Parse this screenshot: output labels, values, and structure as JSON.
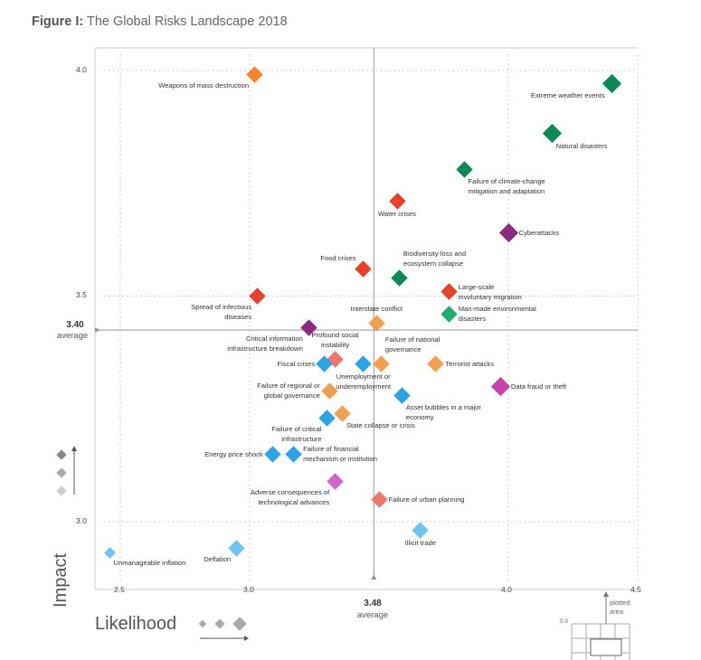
{
  "title": {
    "prefix": "Figure I:",
    "text": " The Global Risks Landscape 2018"
  },
  "chart_data": {
    "type": "scatter",
    "title": "Figure I: The Global Risks Landscape 2018",
    "xlabel": "Likelihood",
    "ylabel": "Impact",
    "xlim": [
      2.5,
      4.5
    ],
    "ylim": [
      3.0,
      4.0
    ],
    "x_ticks": [
      "2.5",
      "3.0",
      "4.0",
      "4.5"
    ],
    "y_ticks": [
      "4.0",
      "3.5",
      "3.0"
    ],
    "grid": true,
    "average": {
      "x": 3.48,
      "x_label": "3.48",
      "y": 3.4,
      "y_label": "3.40",
      "word": "average"
    },
    "inset": {
      "label": "plotted area",
      "tick": "5.0"
    },
    "colors": {
      "economic": "#2ba3e6",
      "economic_light": "#6fc4f1",
      "environmental": "#0b8a55",
      "environmental_light": "#1fae6d",
      "geopolitical": "#f0a050",
      "geopolitical_dark": "#f5872a",
      "societal": "#e8412b",
      "societal_light": "#f0756a",
      "technological": "#8b2a7f",
      "technological_light": "#c544ad",
      "technological_pink": "#d662cc"
    },
    "points": [
      {
        "name": "Weapons of mass destruction",
        "x": 3.02,
        "y": 3.99,
        "color": "#f5872a",
        "size": 2,
        "pos": "bl"
      },
      {
        "name": "Extreme weather events",
        "x": 4.4,
        "y": 3.97,
        "color": "#0b8a55",
        "size": 3,
        "pos": "bl"
      },
      {
        "name": "Natural disasters",
        "x": 4.17,
        "y": 3.86,
        "color": "#0b8a55",
        "size": 3,
        "pos": "br"
      },
      {
        "name": "Failure of climate-change\nmitigation and adaptation",
        "x": 3.83,
        "y": 3.78,
        "color": "#0b8a55",
        "size": 2,
        "pos": "br"
      },
      {
        "name": "Water crises",
        "x": 3.57,
        "y": 3.71,
        "color": "#e8412b",
        "size": 2,
        "pos": "b"
      },
      {
        "name": "Cyberattacks",
        "x": 4.0,
        "y": 3.64,
        "color": "#8b2a7f",
        "size": 3,
        "pos": "r"
      },
      {
        "name": "Food crises",
        "x": 3.44,
        "y": 3.56,
        "color": "#e8412b",
        "size": 2,
        "pos": "tl"
      },
      {
        "name": "Biodiversity loss and\necosystem collapse",
        "x": 3.58,
        "y": 3.54,
        "color": "#0b8a55",
        "size": 2,
        "pos": "tr"
      },
      {
        "name": "Large-scale\ninvoluntary migration",
        "x": 3.77,
        "y": 3.51,
        "color": "#e8412b",
        "size": 2,
        "pos": "r"
      },
      {
        "name": "Spread of infectious\ndiseases",
        "x": 3.03,
        "y": 3.5,
        "color": "#e8412b",
        "size": 2,
        "pos": "bl"
      },
      {
        "name": "Man-made environmental\ndisasters",
        "x": 3.77,
        "y": 3.46,
        "color": "#1fae6d",
        "size": 2,
        "pos": "r"
      },
      {
        "name": "Interstate conflict",
        "x": 3.49,
        "y": 3.44,
        "color": "#f0a050",
        "size": 2,
        "pos": "t"
      },
      {
        "name": "Critical information\ninfrastructure breakdown",
        "x": 3.23,
        "y": 3.43,
        "color": "#8b2a7f",
        "size": 2,
        "pos": "bl"
      },
      {
        "name": "Profound social\ninstability",
        "x": 3.33,
        "y": 3.36,
        "color": "#f0756a",
        "size": 2,
        "pos": "t"
      },
      {
        "name": "Fiscal crises",
        "x": 3.29,
        "y": 3.35,
        "color": "#2ba3e6",
        "size": 2,
        "pos": "l"
      },
      {
        "name": "Unemployment or\nunderemployment",
        "x": 3.44,
        "y": 3.35,
        "color": "#2ba3e6",
        "size": 2,
        "pos": "b"
      },
      {
        "name": "Failure of national\ngovernance",
        "x": 3.51,
        "y": 3.35,
        "color": "#f0a050",
        "size": 2,
        "pos": "tr"
      },
      {
        "name": "Terrorist attacks",
        "x": 3.72,
        "y": 3.35,
        "color": "#f0a050",
        "size": 2,
        "pos": "r"
      },
      {
        "name": "Data fraud or theft",
        "x": 3.97,
        "y": 3.3,
        "color": "#c544ad",
        "size": 3,
        "pos": "r"
      },
      {
        "name": "Failure of regional or\nglobal governance",
        "x": 3.31,
        "y": 3.29,
        "color": "#f0a050",
        "size": 2,
        "pos": "l"
      },
      {
        "name": "Asset bubbles in a major\neconomy",
        "x": 3.59,
        "y": 3.28,
        "color": "#2ba3e6",
        "size": 2,
        "pos": "br"
      },
      {
        "name": "Failure of critical\ninfrastructure",
        "x": 3.3,
        "y": 3.23,
        "color": "#2ba3e6",
        "size": 2,
        "pos": "bl"
      },
      {
        "name": "State collapse or crisis",
        "x": 3.36,
        "y": 3.24,
        "color": "#f0a050",
        "size": 2,
        "pos": "br"
      },
      {
        "name": "Energy price shock",
        "x": 3.09,
        "y": 3.15,
        "color": "#2ba3e6",
        "size": 2,
        "pos": "l"
      },
      {
        "name": "Failure of financial\nmechanism or institution",
        "x": 3.17,
        "y": 3.15,
        "color": "#2ba3e6",
        "size": 2,
        "pos": "r"
      },
      {
        "name": "Adverse consequences of\ntechnological advances",
        "x": 3.33,
        "y": 3.09,
        "color": "#d662cc",
        "size": 2,
        "pos": "bl"
      },
      {
        "name": "Failure of urban planning",
        "x": 3.5,
        "y": 3.05,
        "color": "#f0756a",
        "size": 2,
        "pos": "r"
      },
      {
        "name": "Illicit trade",
        "x": 3.66,
        "y": 2.98,
        "color": "#6fc4f1",
        "size": 2,
        "pos": "b"
      },
      {
        "name": "Deflation",
        "x": 2.95,
        "y": 2.94,
        "color": "#6fc4f1",
        "size": 2,
        "pos": "bl"
      },
      {
        "name": "Unmanageable inflation",
        "x": 2.46,
        "y": 2.93,
        "color": "#6fc4f1",
        "size": 1,
        "pos": "br"
      }
    ]
  }
}
